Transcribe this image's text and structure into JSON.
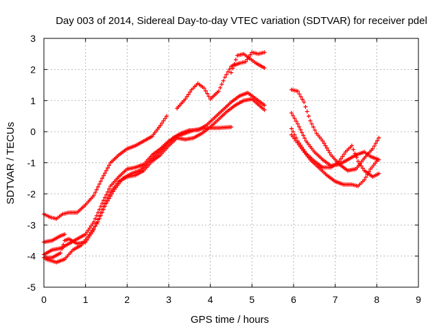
{
  "chart_data": {
    "type": "scatter",
    "title": "Day 003 of 2014, Sidereal Day-to-day VTEC variation (SDTVAR) for receiver pdel",
    "xlabel": "GPS time / hours",
    "ylabel": "SDTVAR / TECUs",
    "xlim": [
      0,
      9
    ],
    "ylim": [
      -5,
      3
    ],
    "xticks": [
      "0",
      "1",
      "2",
      "3",
      "4",
      "5",
      "6",
      "7",
      "8",
      "9"
    ],
    "yticks": [
      "-5",
      "-4",
      "-3",
      "-2",
      "-1",
      "0",
      "1",
      "2",
      "3"
    ],
    "grid": true,
    "legend": "none",
    "marker": "plus",
    "series_color": "#ff0000",
    "series": [
      {
        "x": [
          0.0,
          0.15,
          0.3,
          0.45,
          0.6,
          0.8,
          1.0,
          1.2,
          1.4,
          1.6,
          1.8,
          2.0,
          2.2,
          2.4,
          2.6,
          2.8,
          2.95
        ],
        "y": [
          -2.65,
          -2.75,
          -2.8,
          -2.65,
          -2.6,
          -2.6,
          -2.35,
          -2.05,
          -1.5,
          -1.0,
          -0.75,
          -0.55,
          -0.45,
          -0.3,
          -0.15,
          0.2,
          0.5
        ]
      },
      {
        "x": [
          0.0,
          0.2,
          0.4,
          0.5
        ],
        "y": [
          -3.55,
          -3.5,
          -3.35,
          -3.3
        ]
      },
      {
        "x": [
          0.0,
          0.2,
          0.4,
          0.6,
          0.8,
          1.0,
          1.2,
          1.4,
          1.6,
          1.8,
          2.0,
          2.2,
          2.4,
          2.6,
          2.8,
          3.0,
          3.2,
          3.4,
          3.6,
          3.8,
          4.0,
          4.2,
          4.5
        ],
        "y": [
          -3.95,
          -3.8,
          -3.75,
          -3.6,
          -3.45,
          -3.3,
          -2.9,
          -2.3,
          -1.75,
          -1.45,
          -1.2,
          -1.15,
          -1.05,
          -0.75,
          -0.55,
          -0.3,
          -0.15,
          -0.05,
          0.05,
          0.1,
          0.12,
          0.12,
          0.15
        ]
      },
      {
        "x": [
          0.0,
          0.2,
          0.4,
          0.5,
          0.6,
          0.8,
          1.0,
          1.2,
          1.4,
          1.6,
          1.8,
          2.0,
          2.2,
          2.4,
          2.6,
          2.8,
          3.0,
          3.2,
          3.4,
          3.6,
          3.8,
          4.0,
          4.2,
          4.4,
          4.6,
          4.8,
          5.0,
          5.3
        ],
        "y": [
          -4.05,
          -4.05,
          -3.9,
          -3.5,
          -3.45,
          -3.6,
          -3.55,
          -3.15,
          -2.5,
          -1.95,
          -1.6,
          -1.45,
          -1.4,
          -1.25,
          -0.95,
          -0.75,
          -0.45,
          -0.2,
          -0.25,
          -0.2,
          -0.05,
          0.15,
          0.4,
          0.65,
          0.85,
          1.0,
          1.05,
          0.7
        ]
      },
      {
        "x": [
          0.05,
          0.3,
          0.5,
          0.7,
          0.9,
          1.1,
          1.3,
          1.5,
          1.7,
          1.9,
          2.1,
          2.3,
          2.5,
          2.7,
          2.9,
          3.1,
          3.3,
          3.5,
          3.7,
          3.9,
          4.1,
          4.3,
          4.5,
          4.7,
          4.9,
          5.1,
          5.3
        ],
        "y": [
          -4.1,
          -4.2,
          -4.1,
          -3.8,
          -3.65,
          -3.3,
          -2.9,
          -2.3,
          -1.85,
          -1.5,
          -1.35,
          -1.25,
          -1.0,
          -0.75,
          -0.5,
          -0.2,
          -0.05,
          0.05,
          0.05,
          0.2,
          0.45,
          0.7,
          0.95,
          1.15,
          1.25,
          1.05,
          0.85
        ]
      },
      {
        "x": [
          3.2,
          3.4,
          3.55,
          3.7,
          3.85,
          4.0,
          4.2,
          4.35,
          4.5,
          4.7,
          4.85,
          5.0,
          5.15,
          5.3
        ],
        "y": [
          0.75,
          1.05,
          1.35,
          1.55,
          1.4,
          1.05,
          1.3,
          1.75,
          2.1,
          2.2,
          2.25,
          2.55,
          2.5,
          2.55
        ]
      },
      {
        "x": [
          4.5,
          4.65,
          4.8,
          4.95,
          5.1,
          5.3
        ],
        "y": [
          1.9,
          2.45,
          2.5,
          2.35,
          2.2,
          2.05
        ]
      },
      {
        "x": [
          5.95,
          6.1,
          6.25,
          6.4,
          6.55,
          6.7,
          6.9,
          7.1,
          7.3,
          7.5,
          7.7,
          7.9,
          8.05
        ],
        "y": [
          1.35,
          1.3,
          0.95,
          0.35,
          -0.05,
          -0.3,
          -0.75,
          -1.05,
          -1.25,
          -1.2,
          -0.85,
          -0.55,
          -0.2
        ]
      },
      {
        "x": [
          5.95,
          6.1,
          6.3,
          6.5,
          6.7,
          6.9,
          7.1,
          7.3,
          7.5,
          7.7,
          7.85,
          8.05
        ],
        "y": [
          0.6,
          0.25,
          -0.3,
          -0.65,
          -0.9,
          -1.1,
          -1.05,
          -0.9,
          -0.75,
          -0.65,
          -0.8,
          -0.9
        ]
      },
      {
        "x": [
          5.95,
          6.1,
          6.3,
          6.5,
          6.7,
          6.9,
          7.1,
          7.25,
          7.4,
          7.55,
          7.7,
          7.9,
          8.05
        ],
        "y": [
          0.1,
          -0.3,
          -0.7,
          -0.95,
          -1.15,
          -1.15,
          -0.95,
          -0.65,
          -0.45,
          -0.95,
          -1.25,
          -1.45,
          -1.35
        ]
      },
      {
        "x": [
          5.95,
          6.2,
          6.4,
          6.6,
          6.8,
          7.0,
          7.2,
          7.4,
          7.55,
          7.7,
          7.85,
          8.0
        ],
        "y": [
          -0.1,
          -0.55,
          -0.9,
          -1.15,
          -1.4,
          -1.6,
          -1.7,
          -1.7,
          -1.75,
          -1.55,
          -1.2,
          -0.95
        ]
      }
    ]
  }
}
